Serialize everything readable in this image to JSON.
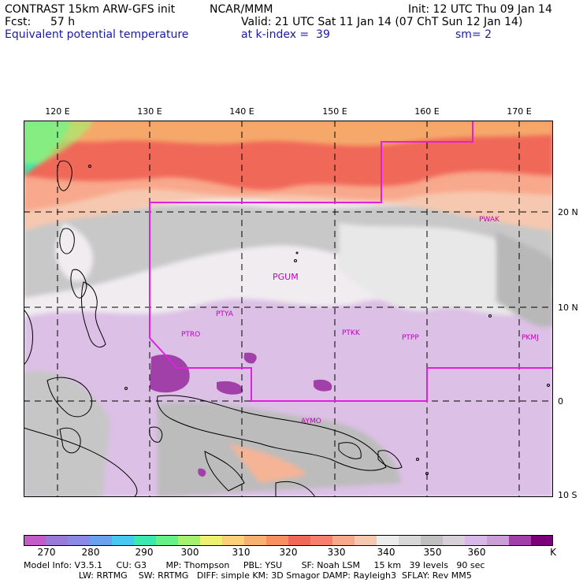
{
  "header": {
    "model_title": "CONTRAST 15km ARW-GFS init",
    "center": "NCAR/MMM",
    "init": "Init: 12 UTC Thu 09 Jan 14",
    "fcst_label": "Fcst:",
    "fcst_value": "57 h",
    "valid": "Valid: 21 UTC Sat 11 Jan 14 (07 ChT Sun 12 Jan 14)",
    "field": "Equivalent potential temperature",
    "level": "at k-index =  39",
    "smoothing": "sm= 2"
  },
  "map": {
    "lon_labels": [
      "120 E",
      "130 E",
      "140 E",
      "150 E",
      "160 E",
      "170 E"
    ],
    "lat_labels": [
      "20 N",
      "10 N",
      "0",
      "10 S"
    ],
    "stations": [
      "PWAK",
      "PGUM",
      "PTYA",
      "PTRO",
      "PTKK",
      "PTPP",
      "PKMJ",
      "AYMO"
    ]
  },
  "colorbar": {
    "labels": [
      "270",
      "280",
      "290",
      "300",
      "310",
      "320",
      "330",
      "340",
      "350",
      "360"
    ],
    "unit": "K",
    "colors": [
      "#c45cc8",
      "#9a7ad8",
      "#8a8ae6",
      "#6aa0ee",
      "#48c8f0",
      "#3ae8b0",
      "#66f088",
      "#a6f070",
      "#eef070",
      "#fad078",
      "#f8b070",
      "#f69060",
      "#f06858",
      "#f87e70",
      "#f8a88c",
      "#f6c8b0",
      "#ececec",
      "#d8d8d8",
      "#c0c0c0",
      "#d8d0d8",
      "#d8b8e8",
      "#cc9ed8",
      "#a040a8",
      "#7c0078"
    ]
  },
  "footer": {
    "line1": "Model Info: V3.5.1     CU: G3       MP: Thompson     PBL: YSU       SF: Noah LSM     15 km   39 levels   90 sec",
    "line2": "                    LW: RRTMG    SW: RRTMG   DIFF: simple KM: 3D Smagor DAMP: Rayleigh3  SFLAY: Rev MM5"
  }
}
